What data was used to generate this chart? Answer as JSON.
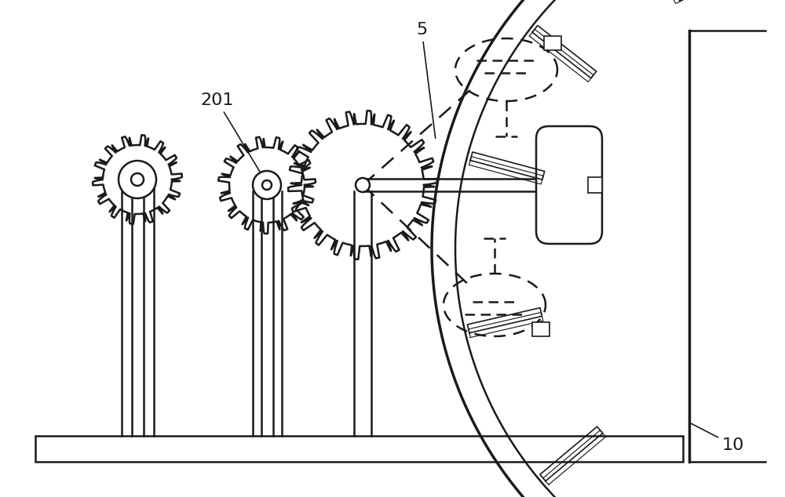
{
  "bg_color": "#ffffff",
  "line_color": "#1a1a1a",
  "fig_width": 10.0,
  "fig_height": 6.34,
  "label_201": "201",
  "label_5": "5",
  "label_10": "10"
}
